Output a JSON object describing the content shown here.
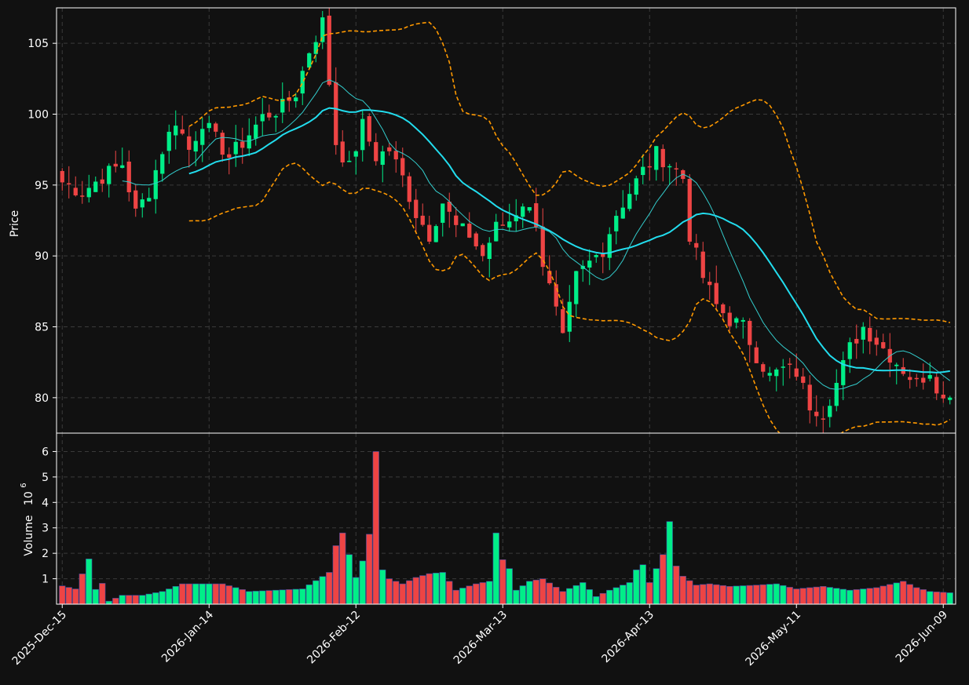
{
  "colors": {
    "background": "#111111",
    "frame": "#ffffff",
    "grid": "#3a3a3a",
    "up": "#00ee88",
    "down": "#ee4444",
    "ma_fast": "#33cccc",
    "ma_slow": "#22ddee",
    "bollinger": "#ff9900"
  },
  "chart_data": {
    "type": "candlestick",
    "price_panel": {
      "ylabel": "Price",
      "yticks": [
        "80",
        "85",
        "90",
        "95",
        "100",
        "105"
      ],
      "ylim": [
        77.5,
        107.5
      ],
      "grid": true
    },
    "volume_panel": {
      "ylabel": "Volume",
      "ylabel_exponent": "10",
      "ylabel_power": "6",
      "yticks": [
        "1",
        "2",
        "3",
        "4",
        "5",
        "6"
      ],
      "ylim": [
        0,
        6.6
      ],
      "grid": true
    },
    "x_tick_labels": [
      {
        "label": "2025-Dec-15",
        "index": 0
      },
      {
        "label": "2026-Jan-14",
        "index": 22
      },
      {
        "label": "2026-Feb-12",
        "index": 44
      },
      {
        "label": "2026-Mar-13",
        "index": 66
      },
      {
        "label": "2026-Apr-13",
        "index": 88
      },
      {
        "label": "2026-May-11",
        "index": 110
      },
      {
        "label": "2026-Jun-09",
        "index": 132
      }
    ],
    "bar_count": 134,
    "series": [
      {
        "kind": "close_anchors",
        "values": [
          [
            0,
            95.2
          ],
          [
            3,
            94.5
          ],
          [
            6,
            95.6
          ],
          [
            9,
            96.5
          ],
          [
            11,
            93.0
          ],
          [
            13,
            94.6
          ],
          [
            15,
            97.5
          ],
          [
            17,
            99.6
          ],
          [
            19,
            97.5
          ],
          [
            21,
            99.5
          ],
          [
            23,
            98.2
          ],
          [
            25,
            97.0
          ],
          [
            27,
            98.0
          ],
          [
            30,
            99.8
          ],
          [
            33,
            100.5
          ],
          [
            35,
            101.5
          ],
          [
            37,
            104.5
          ],
          [
            39,
            106.5
          ],
          [
            41,
            98.0
          ],
          [
            43,
            96.2
          ],
          [
            45,
            99.2
          ],
          [
            47,
            97.0
          ],
          [
            49,
            97.5
          ],
          [
            51,
            95.5
          ],
          [
            53,
            93.0
          ],
          [
            55,
            91.5
          ],
          [
            57,
            93.8
          ],
          [
            59,
            92.0
          ],
          [
            61,
            91.5
          ],
          [
            63,
            90.0
          ],
          [
            65,
            92.0
          ],
          [
            67,
            92.5
          ],
          [
            69,
            93.8
          ],
          [
            71,
            92.5
          ],
          [
            72,
            89.5
          ],
          [
            74,
            86.0
          ],
          [
            75,
            84.0
          ],
          [
            77,
            88.5
          ],
          [
            79,
            89.5
          ],
          [
            81,
            90.5
          ],
          [
            83,
            93.0
          ],
          [
            85,
            94.5
          ],
          [
            87,
            96.0
          ],
          [
            89,
            97.2
          ],
          [
            91,
            96.5
          ],
          [
            93,
            95.5
          ],
          [
            94,
            91.5
          ],
          [
            96,
            88.5
          ],
          [
            98,
            86.5
          ],
          [
            100,
            85.5
          ],
          [
            102,
            85.0
          ],
          [
            104,
            83.0
          ],
          [
            106,
            81.5
          ],
          [
            108,
            82.0
          ],
          [
            110,
            81.8
          ],
          [
            112,
            79.5
          ],
          [
            114,
            79.0
          ],
          [
            116,
            81.0
          ],
          [
            118,
            83.5
          ],
          [
            120,
            85.0
          ],
          [
            122,
            84.0
          ],
          [
            124,
            83.0
          ],
          [
            126,
            82.0
          ],
          [
            128,
            81.0
          ],
          [
            130,
            82.0
          ],
          [
            132,
            79.8
          ],
          [
            133,
            80.5
          ]
        ]
      },
      {
        "kind": "volume_anchors_millions",
        "values": [
          [
            0,
            0.72
          ],
          [
            2,
            0.6
          ],
          [
            4,
            1.78
          ],
          [
            5,
            0.58
          ],
          [
            6,
            0.82
          ],
          [
            7,
            0.12
          ],
          [
            9,
            0.35
          ],
          [
            12,
            0.35
          ],
          [
            15,
            0.5
          ],
          [
            18,
            0.8
          ],
          [
            22,
            0.8
          ],
          [
            24,
            0.8
          ],
          [
            28,
            0.5
          ],
          [
            32,
            0.55
          ],
          [
            36,
            0.6
          ],
          [
            40,
            1.25
          ],
          [
            41,
            2.3
          ],
          [
            42,
            2.8
          ],
          [
            43,
            1.95
          ],
          [
            44,
            1.05
          ],
          [
            45,
            1.7
          ],
          [
            46,
            2.75
          ],
          [
            47,
            6.0
          ],
          [
            48,
            1.35
          ],
          [
            49,
            1.0
          ],
          [
            51,
            0.8
          ],
          [
            53,
            1.05
          ],
          [
            55,
            1.2
          ],
          [
            57,
            1.25
          ],
          [
            59,
            0.55
          ],
          [
            62,
            0.8
          ],
          [
            64,
            0.9
          ],
          [
            65,
            2.8
          ],
          [
            66,
            1.75
          ],
          [
            67,
            1.4
          ],
          [
            68,
            0.55
          ],
          [
            70,
            0.9
          ],
          [
            72,
            1.0
          ],
          [
            75,
            0.5
          ],
          [
            78,
            0.85
          ],
          [
            80,
            0.3
          ],
          [
            82,
            0.55
          ],
          [
            85,
            0.85
          ],
          [
            86,
            1.35
          ],
          [
            87,
            1.55
          ],
          [
            88,
            0.85
          ],
          [
            90,
            1.95
          ],
          [
            91,
            3.25
          ],
          [
            92,
            1.5
          ],
          [
            93,
            1.1
          ],
          [
            95,
            0.75
          ],
          [
            97,
            0.8
          ],
          [
            100,
            0.7
          ],
          [
            104,
            0.75
          ],
          [
            107,
            0.8
          ],
          [
            110,
            0.6
          ],
          [
            114,
            0.7
          ],
          [
            118,
            0.55
          ],
          [
            122,
            0.65
          ],
          [
            126,
            0.9
          ],
          [
            128,
            0.65
          ],
          [
            130,
            0.5
          ],
          [
            133,
            0.45
          ]
        ]
      }
    ],
    "overlays": [
      "ma_fast",
      "ma_slow",
      "bollinger_upper",
      "bollinger_lower"
    ]
  }
}
